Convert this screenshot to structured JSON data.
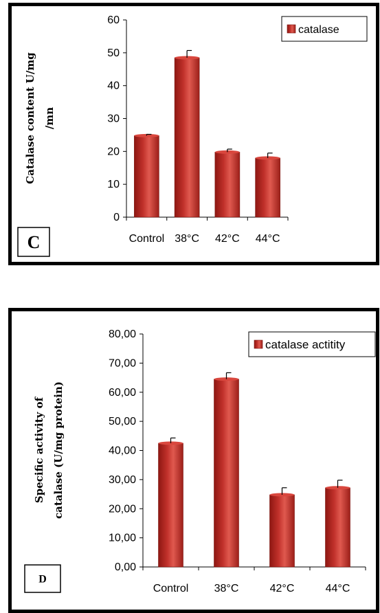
{
  "chart_data": [
    {
      "type": "bar",
      "panel_label": "C",
      "categories": [
        "Control",
        "38°C",
        "42°C",
        "44°C"
      ],
      "series": [
        {
          "name": "catalase",
          "values": [
            24.8,
            48.5,
            19.8,
            18.0
          ],
          "errors": [
            0.4,
            2.2,
            0.9,
            1.5
          ]
        }
      ],
      "ylabel_lines": [
        "Catalase content    U/mg",
        "/mn"
      ],
      "yticks": [
        "0",
        "10",
        "20",
        "30",
        "40",
        "50",
        "60"
      ],
      "ylim": [
        0,
        60
      ],
      "legend_position": "top-right",
      "bar_color": "#c0302a"
    },
    {
      "type": "bar",
      "panel_label": "D",
      "categories": [
        "Control",
        "38°C",
        "42°C",
        "44°C"
      ],
      "series": [
        {
          "name": "catalase actitity",
          "values": [
            42.5,
            64.5,
            24.8,
            27.2
          ],
          "errors": [
            1.8,
            2.2,
            2.4,
            2.6
          ]
        }
      ],
      "ylabel_lines": [
        "Specific activity of",
        "catalase (U/mg protein)"
      ],
      "yticks": [
        "0,00",
        "10,00",
        "20,00",
        "30,00",
        "40,00",
        "50,00",
        "60,00",
        "70,00",
        "80,00"
      ],
      "ylim": [
        0,
        80
      ],
      "legend_position": "top-right",
      "bar_color": "#c0302a"
    }
  ]
}
